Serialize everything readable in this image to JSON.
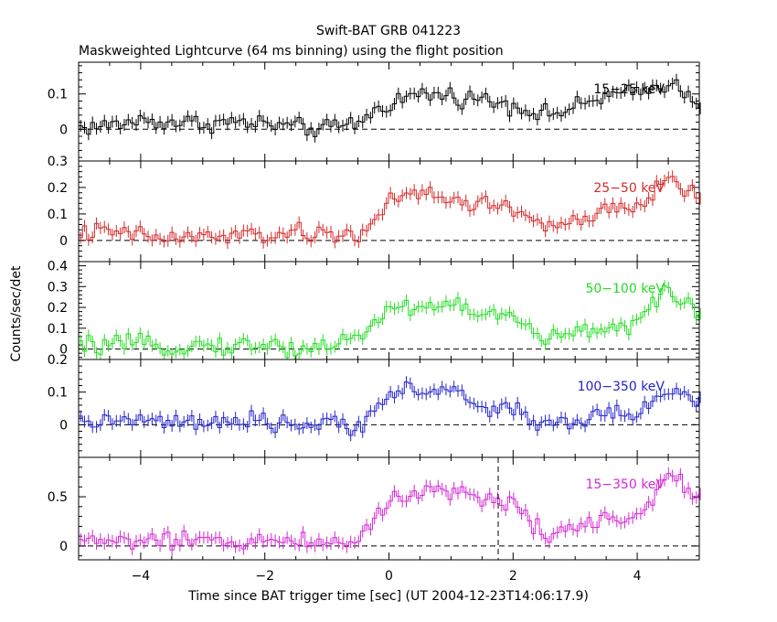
{
  "title": "Swift-BAT GRB 041223",
  "subtitle": "Maskweighted Lightcurve (64 ms binning) using the flight position",
  "ylabel": "Counts/sec/det",
  "xlabel": "Time since BAT trigger time [sec] (UT 2004-12-23T14:06:17.9)",
  "chart_data": [
    {
      "type": "line",
      "name": "15-25 keV",
      "label": "15−25 keV",
      "color": "#000000",
      "xlim": [
        -5,
        5
      ],
      "ylim": [
        -0.09,
        0.19
      ],
      "yticks": [
        0,
        0.1
      ],
      "x": [
        -5.0,
        -4.5,
        -4.0,
        -3.5,
        -3.0,
        -2.5,
        -2.0,
        -1.5,
        -1.0,
        -0.5,
        0.0,
        0.5,
        1.0,
        1.5,
        2.0,
        2.5,
        3.0,
        3.5,
        4.0,
        4.5,
        5.0
      ],
      "y": [
        0.005,
        0.01,
        0.025,
        0.02,
        0.018,
        0.02,
        0.015,
        0.005,
        0.0,
        0.02,
        0.075,
        0.1,
        0.095,
        0.085,
        0.07,
        0.04,
        0.06,
        0.095,
        0.1,
        0.135,
        0.08
      ]
    },
    {
      "type": "line",
      "name": "25-50 keV",
      "label": "25−50 keV",
      "color": "#d42a2a",
      "xlim": [
        -5,
        5
      ],
      "ylim": [
        -0.08,
        0.3
      ],
      "yticks": [
        0,
        0.1,
        0.2,
        0.3
      ],
      "x": [
        -5.0,
        -4.5,
        -4.0,
        -3.5,
        -3.0,
        -2.5,
        -2.0,
        -1.5,
        -1.0,
        -0.5,
        0.0,
        0.5,
        1.0,
        1.5,
        2.0,
        2.5,
        3.0,
        3.5,
        4.0,
        4.5,
        5.0
      ],
      "y": [
        0.03,
        0.03,
        0.02,
        0.005,
        0.015,
        0.015,
        0.02,
        0.025,
        0.02,
        0.02,
        0.14,
        0.18,
        0.15,
        0.14,
        0.12,
        0.06,
        0.06,
        0.11,
        0.12,
        0.24,
        0.16
      ]
    },
    {
      "type": "line",
      "name": "50-100 keV",
      "label": "50−100 keV",
      "color": "#22dd22",
      "xlim": [
        -5,
        5
      ],
      "ylim": [
        -0.05,
        0.42
      ],
      "yticks": [
        0,
        0.1,
        0.2,
        0.3,
        0.4
      ],
      "x": [
        -5.0,
        -4.5,
        -4.0,
        -3.5,
        -3.0,
        -2.5,
        -2.0,
        -1.5,
        -1.0,
        -0.5,
        0.0,
        0.5,
        1.0,
        1.5,
        2.0,
        2.5,
        3.0,
        3.5,
        4.0,
        4.5,
        5.0
      ],
      "y": [
        0.01,
        0.02,
        0.02,
        0.01,
        0.02,
        0.015,
        0.02,
        0.0,
        0.02,
        0.05,
        0.2,
        0.2,
        0.22,
        0.17,
        0.15,
        0.05,
        0.07,
        0.11,
        0.12,
        0.28,
        0.18
      ]
    },
    {
      "type": "line",
      "name": "100-350 keV",
      "label": "100−350 keV",
      "color": "#2222cc",
      "xlim": [
        -5,
        5
      ],
      "ylim": [
        -0.1,
        0.2
      ],
      "yticks": [
        0,
        0.1,
        0.2
      ],
      "x": [
        -5.0,
        -4.5,
        -4.0,
        -3.5,
        -3.0,
        -2.5,
        -2.0,
        -1.5,
        -1.0,
        -0.5,
        0.0,
        0.5,
        1.0,
        1.5,
        2.0,
        2.5,
        3.0,
        3.5,
        4.0,
        4.5,
        5.0
      ],
      "y": [
        0.0,
        0.015,
        0.01,
        0.005,
        0.005,
        0.0,
        0.01,
        0.0,
        0.0,
        -0.005,
        0.1,
        0.1,
        0.11,
        0.05,
        0.05,
        0.0,
        0.01,
        0.03,
        0.04,
        0.1,
        0.07
      ]
    },
    {
      "type": "line",
      "name": "15-350 keV",
      "label": "15−350 keV",
      "color": "#d428d4",
      "xlim": [
        -5,
        5
      ],
      "ylim": [
        -0.14,
        0.9
      ],
      "yticks": [
        0,
        0.5
      ],
      "vline_x": 1.76,
      "x": [
        -5.0,
        -4.5,
        -4.0,
        -3.5,
        -3.0,
        -2.5,
        -2.0,
        -1.5,
        -1.0,
        -0.5,
        0.0,
        0.5,
        1.0,
        1.5,
        2.0,
        2.5,
        3.0,
        3.5,
        4.0,
        4.5,
        5.0
      ],
      "y": [
        0.05,
        0.06,
        0.05,
        0.04,
        0.05,
        0.05,
        0.06,
        0.04,
        0.04,
        0.08,
        0.45,
        0.55,
        0.6,
        0.45,
        0.45,
        0.12,
        0.2,
        0.3,
        0.3,
        0.72,
        0.5
      ]
    }
  ],
  "xticks": [
    -4,
    -2,
    0,
    2,
    4
  ]
}
